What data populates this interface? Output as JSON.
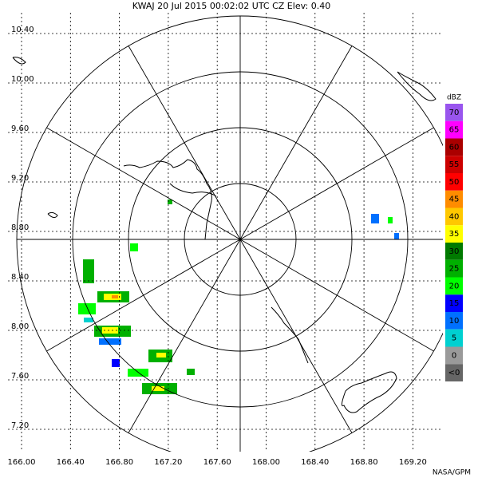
{
  "header": {
    "title": "KWAJ  20 Jul 2015 00:02:02 UTC  CZ  Elev: 0.40"
  },
  "lat_labels": [
    "10.40",
    "10.00",
    "9.60",
    "9.20",
    "8.80",
    "8.40",
    "8.00",
    "7.60",
    "7.20"
  ],
  "lon_labels": [
    "166.00",
    "166.40",
    "166.80",
    "167.20",
    "167.60",
    "168.00",
    "168.40",
    "168.80",
    "169.20"
  ],
  "colorbar": {
    "unit": "dBZ",
    "entries": [
      {
        "label": "70",
        "color": "#9955ee"
      },
      {
        "label": "65",
        "color": "#ff00ff"
      },
      {
        "label": "60",
        "color": "#aa0000"
      },
      {
        "label": "55",
        "color": "#cc0000"
      },
      {
        "label": "50",
        "color": "#ff0000"
      },
      {
        "label": "45",
        "color": "#ff8c00"
      },
      {
        "label": "40",
        "color": "#ffc800"
      },
      {
        "label": "35",
        "color": "#ffff00"
      },
      {
        "label": "30",
        "color": "#007a00"
      },
      {
        "label": "25",
        "color": "#00b000"
      },
      {
        "label": "20",
        "color": "#00ff00"
      },
      {
        "label": "15",
        "color": "#0000ff"
      },
      {
        "label": "10",
        "color": "#0070ff"
      },
      {
        "label": "5",
        "color": "#00d0d0"
      },
      {
        "label": "0",
        "color": "#9a9a9a"
      },
      {
        "label": "<0",
        "color": "#666666"
      }
    ]
  },
  "footer": {
    "credit": "NASA/GPM"
  }
}
